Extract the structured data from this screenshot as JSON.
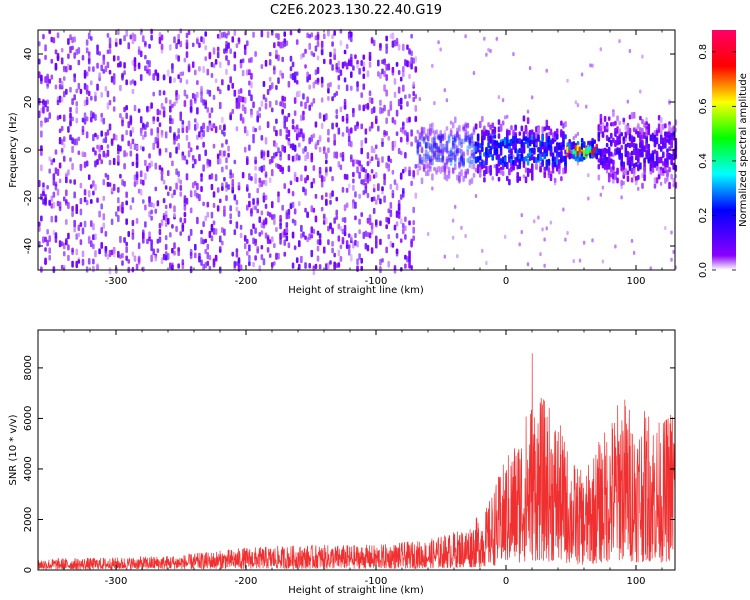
{
  "title": "C2E6.2023.130.22.40.G19",
  "chart_data": [
    {
      "type": "heatmap",
      "title": "C2E6.2023.130.22.40.G19",
      "xlabel": "Height of straight line (km)",
      "ylabel": "Frequency (Hz)",
      "xlim": [
        -360,
        130
      ],
      "ylim": [
        -50,
        50
      ],
      "xticks": [
        -300,
        -200,
        -100,
        0,
        100
      ],
      "xtick_labels": [
        "-300",
        "-200",
        "-100",
        "0",
        "100"
      ],
      "yticks": [
        -40,
        -20,
        0,
        20,
        40
      ],
      "ytick_labels": [
        "-40",
        "-20",
        "0",
        "20",
        "40"
      ],
      "colorbar": {
        "label": "Normalized spectral amplitude",
        "range": [
          0,
          0.88
        ],
        "ticks": [
          0.0,
          0.2,
          0.4,
          0.6,
          0.8
        ],
        "tick_labels": [
          "0.0",
          "0.2",
          "0.4",
          "0.6",
          "0.8"
        ],
        "colors": [
          "#ffffff",
          "#8a00ff",
          "#0000ff",
          "#00ffff",
          "#00ff00",
          "#ffff00",
          "#ff0000",
          "#ff0066"
        ]
      },
      "regions": [
        {
          "x_range": [
            -360,
            -70
          ],
          "freq_band": [
            -50,
            50
          ],
          "amplitude": 0.05,
          "note": "broadband noise"
        },
        {
          "x_range": [
            -70,
            45
          ],
          "freq_band": [
            -10,
            10
          ],
          "amplitude": 0.25
        },
        {
          "x_range": [
            45,
            70
          ],
          "freq_band": [
            -3,
            3
          ],
          "amplitude": 0.8
        },
        {
          "x_range": [
            70,
            130
          ],
          "freq_band": [
            -12,
            12
          ],
          "amplitude": 0.15
        }
      ]
    },
    {
      "type": "line",
      "xlabel": "Height of straight line (km)",
      "ylabel": "SNR (10 * v/v)",
      "xlim": [
        -360,
        130
      ],
      "ylim": [
        0,
        9500
      ],
      "xticks": [
        -300,
        -200,
        -100,
        0,
        100
      ],
      "xtick_labels": [
        "-300",
        "-200",
        "-100",
        "0",
        "100"
      ],
      "yticks": [
        0,
        2000,
        4000,
        6000,
        8000
      ],
      "ytick_labels": [
        "0",
        "2000",
        "4000",
        "6000",
        "8000"
      ],
      "color": "#f03030",
      "envelope": {
        "x": [
          -360,
          -300,
          -250,
          -200,
          -150,
          -100,
          -60,
          -30,
          -15,
          0,
          10,
          20,
          30,
          40,
          50,
          60,
          70,
          80,
          90,
          100,
          110,
          120,
          130
        ],
        "y_max": [
          450,
          500,
          600,
          900,
          1000,
          1000,
          1200,
          1700,
          2500,
          4500,
          5500,
          7000,
          6800,
          6000,
          4500,
          3800,
          5000,
          6000,
          7200,
          6000,
          6500,
          5800,
          7000
        ],
        "peak": {
          "x": 20,
          "y": 9400
        }
      }
    }
  ],
  "colors": {
    "noise": "#7b10f0",
    "signal": "#00c8ff",
    "hot": "#ff3000",
    "snr_line": "#f03030"
  }
}
